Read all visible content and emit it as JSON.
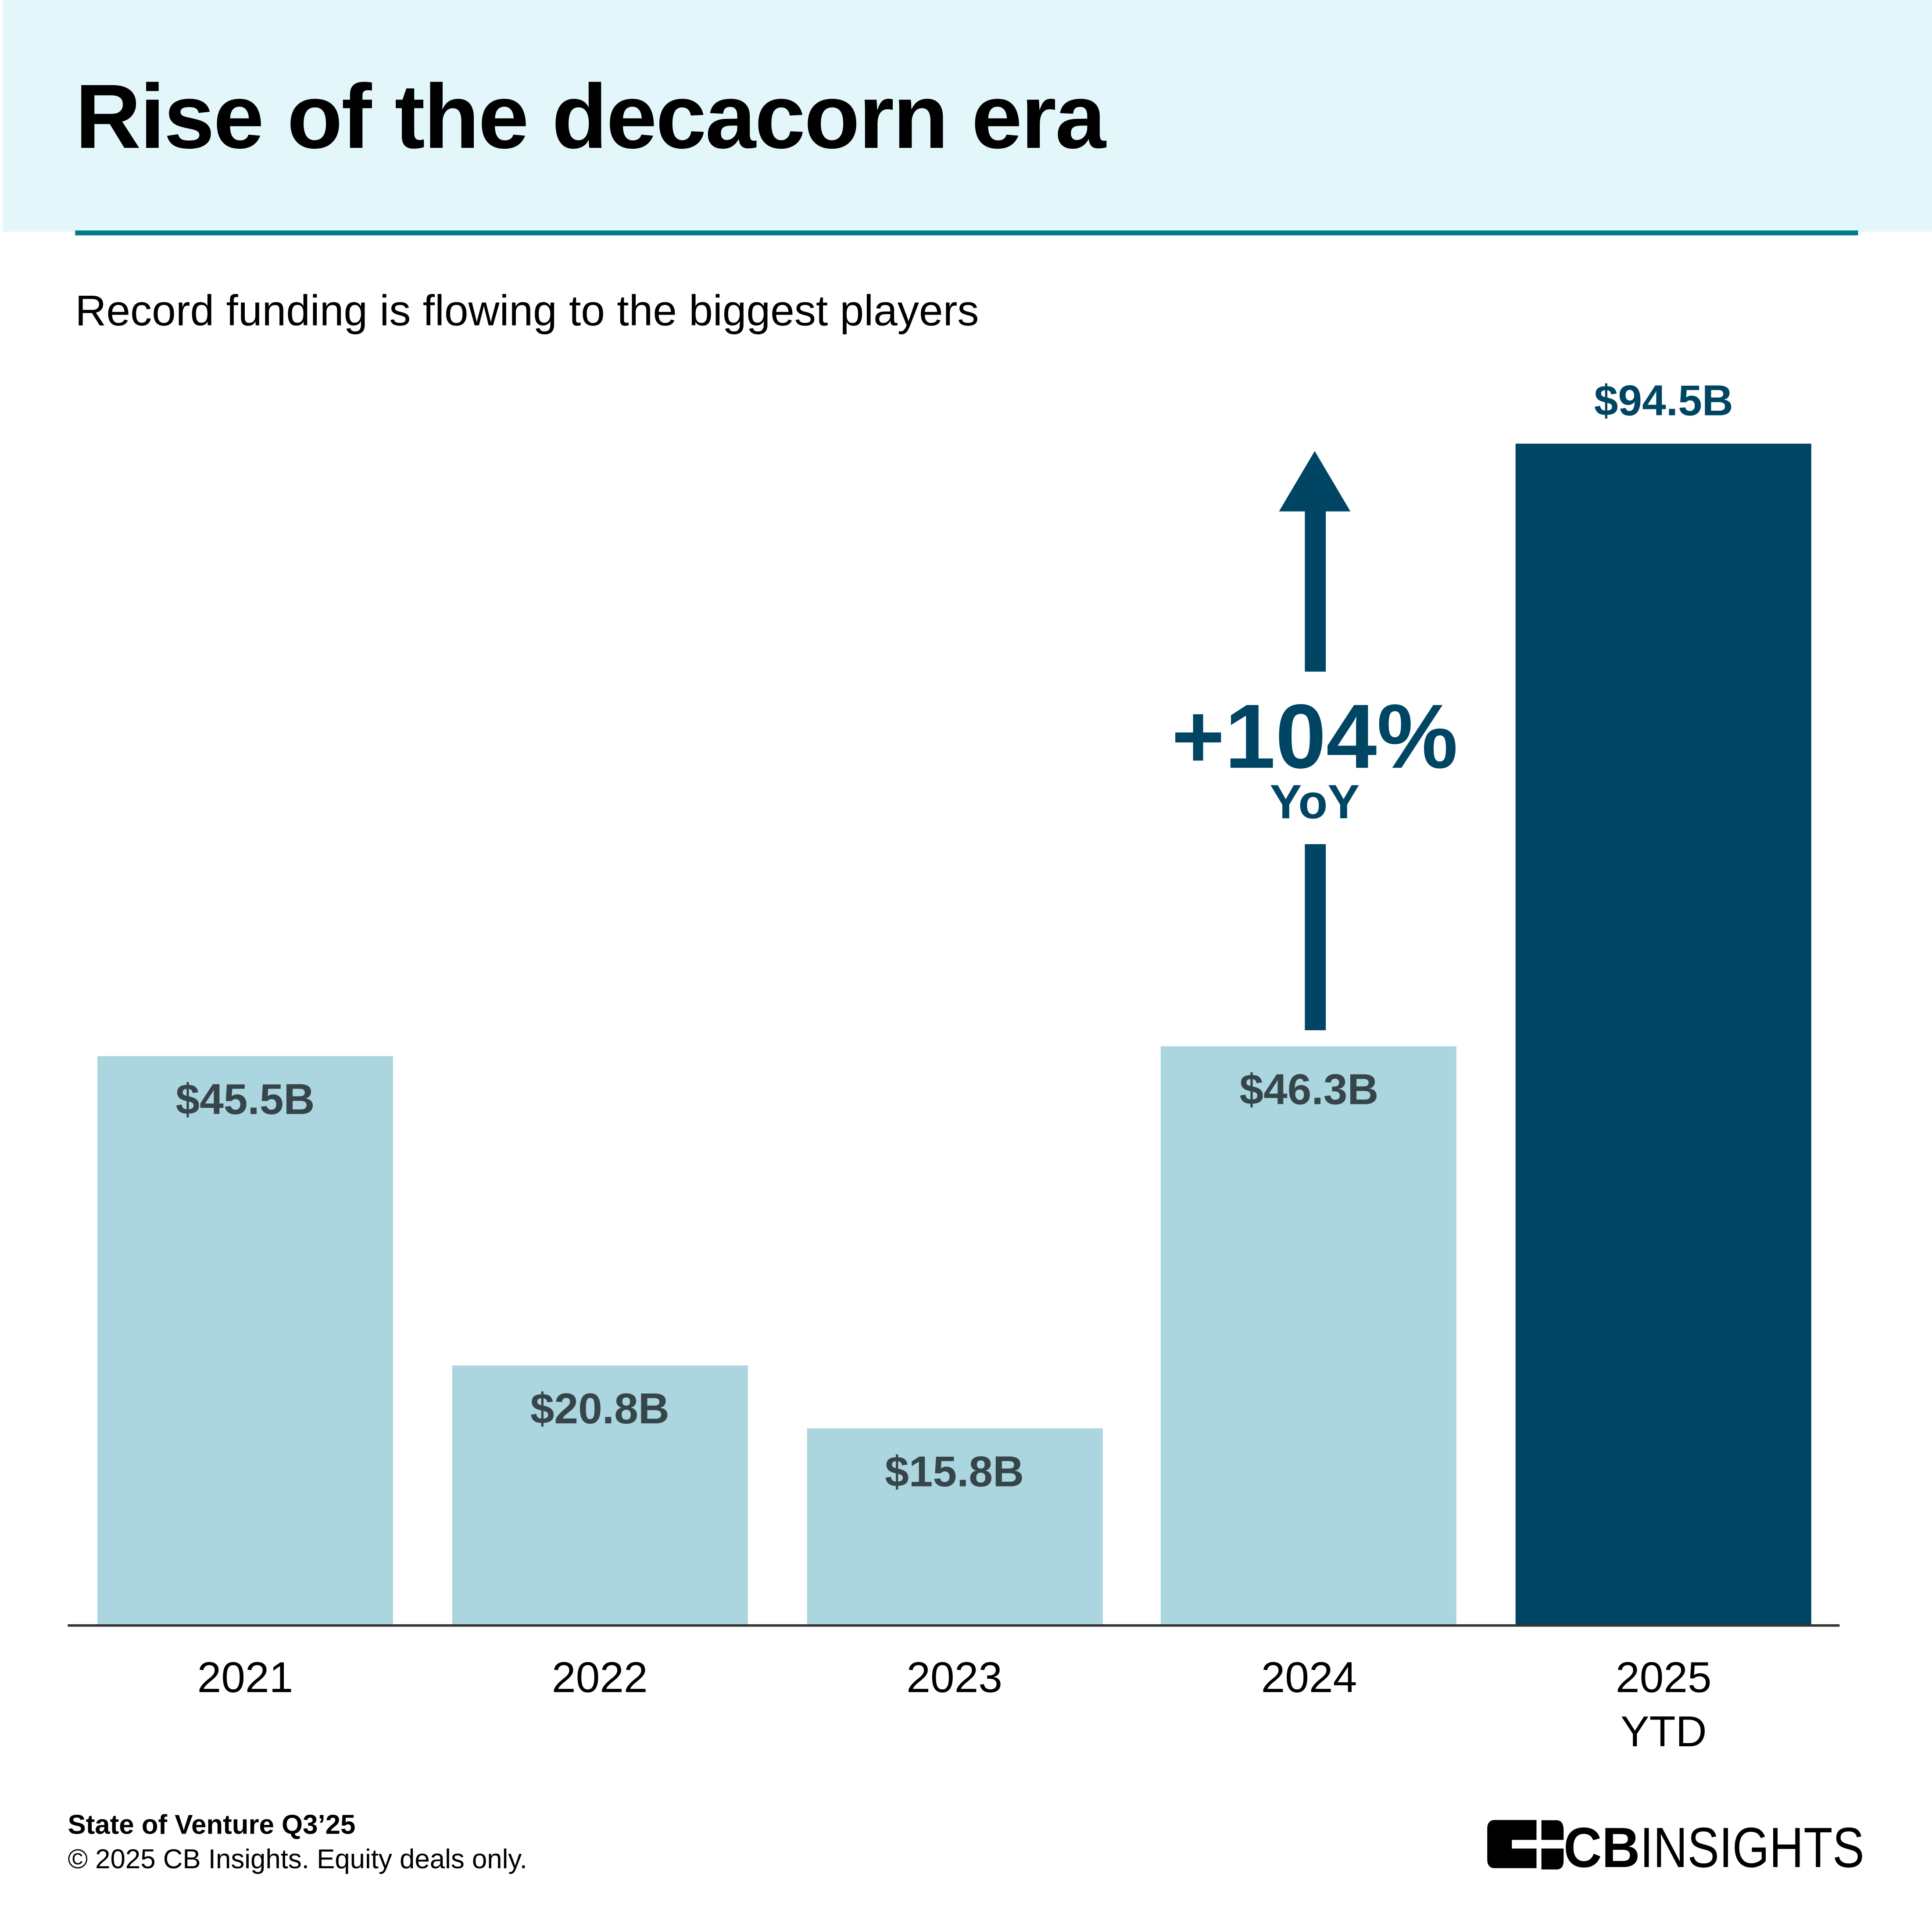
{
  "title": "Rise of the decacorn era",
  "subtitle": "Record funding is flowing to the biggest players",
  "colors": {
    "header_bg": "#e3f7fb",
    "rule": "#007a8a",
    "bar_light": "#acd6df",
    "bar_highlight": "#004563",
    "label_dark": "#36454a"
  },
  "chart_data": {
    "type": "bar",
    "title": "Rise of the decacorn era",
    "subtitle": "Record funding is flowing to the biggest players",
    "categories": [
      "2021",
      "2022",
      "2023",
      "2024",
      "2025 YTD"
    ],
    "category_lines": [
      [
        "2021"
      ],
      [
        "2022"
      ],
      [
        "2023"
      ],
      [
        "2024"
      ],
      [
        "2025",
        "YTD"
      ]
    ],
    "values": [
      45.5,
      20.8,
      15.8,
      46.3,
      94.5
    ],
    "unit": "$B",
    "data_labels": [
      "$45.5B",
      "$20.8B",
      "$15.8B",
      "$46.3B",
      "$94.5B"
    ],
    "highlight_index": 4,
    "ylim": [
      0,
      94.5
    ],
    "grid": false,
    "annotation": {
      "text": "+104%",
      "subtext": "YoY",
      "icon": "arrow-up-icon",
      "from": "2024",
      "to": "2025 YTD"
    }
  },
  "footer": {
    "source": "State of Venture Q3’25",
    "note": "© 2025 CB Insights. Equity deals only."
  },
  "logo": {
    "text": "CBINSIGHTS",
    "icon": "cb-insights-logo-icon"
  }
}
